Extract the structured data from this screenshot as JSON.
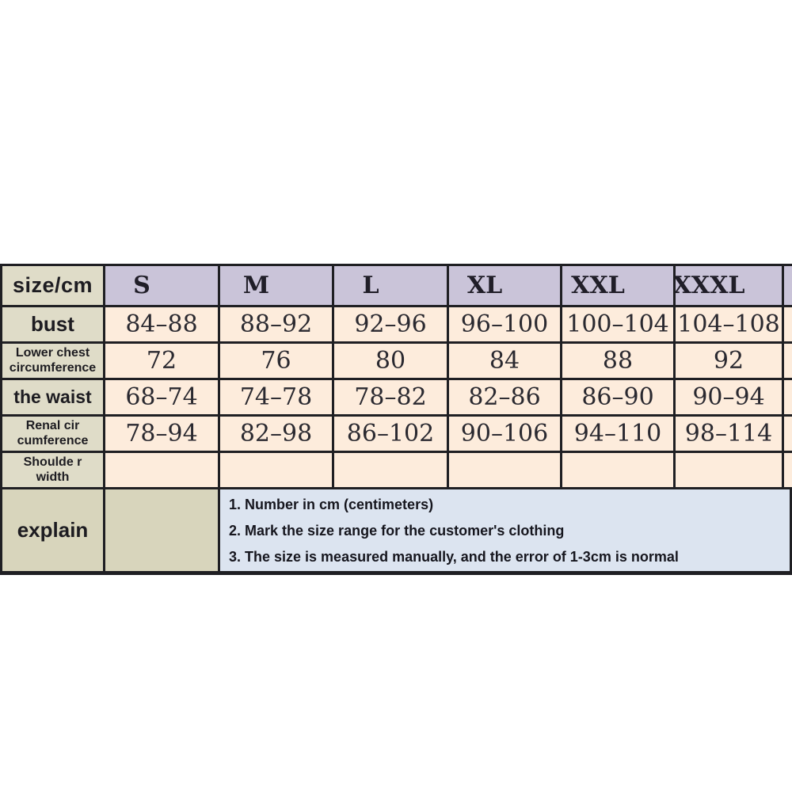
{
  "colors": {
    "header_bg": "#cac4d9",
    "label_bg": "#dfdcc8",
    "explain_label_bg": "#d8d5bc",
    "cell_bg": "#fdecdc",
    "notes_bg": "#dce4f0",
    "border": "#1f1f23",
    "text": "#1d1c21"
  },
  "chart_data": {
    "type": "table",
    "corner_label": "size/cm",
    "columns": [
      "S",
      "M",
      "L",
      "XL",
      "XXL",
      "XXXL"
    ],
    "rows": [
      {
        "label": "bust",
        "values": [
          "84–88",
          "88–92",
          "92–96",
          "96–100",
          "100–104",
          "104–108"
        ]
      },
      {
        "label": "Lower chest circumference",
        "values": [
          "72",
          "76",
          "80",
          "84",
          "88",
          "92"
        ]
      },
      {
        "label": "the waist",
        "values": [
          "68–74",
          "74–78",
          "78–82",
          "82–86",
          "86–90",
          "90–94"
        ]
      },
      {
        "label": "Renal cir cumference",
        "values": [
          "78–94",
          "82–98",
          "86–102",
          "90–106",
          "94–110",
          "98–114"
        ]
      },
      {
        "label": "Shoulde r width",
        "values": [
          "",
          "",
          "",
          "",
          "",
          ""
        ]
      }
    ],
    "explain": {
      "label": "explain",
      "notes": [
        "1. Number in cm (centimeters)",
        "2. Mark the size range for the customer's clothing",
        "3. The size is measured manually, and the error of 1-3cm is normal"
      ]
    }
  }
}
